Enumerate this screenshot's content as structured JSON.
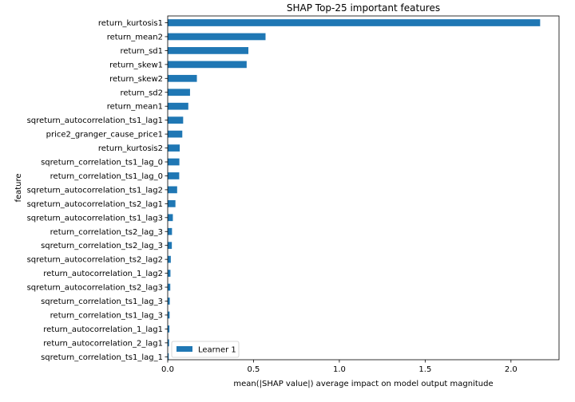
{
  "chart_data": {
    "type": "bar",
    "orientation": "horizontal",
    "title": "SHAP Top-25 important features",
    "xlabel": "mean(|SHAP value|) average impact on model output magnitude",
    "ylabel": "feature",
    "xlim": [
      0,
      2.28
    ],
    "xticks": [
      0.0,
      0.5,
      1.0,
      1.5,
      2.0
    ],
    "xtick_labels": [
      "0.0",
      "0.5",
      "1.0",
      "1.5",
      "2.0"
    ],
    "grid": false,
    "legend_position": "lower-left",
    "bar_color": "#1f77b4",
    "categories": [
      "return_kurtosis1",
      "return_mean2",
      "return_sd1",
      "return_skew1",
      "return_skew2",
      "return_sd2",
      "return_mean1",
      "sqreturn_autocorrelation_ts1_lag1",
      "price2_granger_cause_price1",
      "return_kurtosis2",
      "sqreturn_correlation_ts1_lag_0",
      "return_correlation_ts1_lag_0",
      "sqreturn_autocorrelation_ts1_lag2",
      "sqreturn_autocorrelation_ts2_lag1",
      "sqreturn_autocorrelation_ts1_lag3",
      "return_correlation_ts2_lag_3",
      "sqreturn_correlation_ts2_lag_3",
      "sqreturn_autocorrelation_ts2_lag2",
      "return_autocorrelation_1_lag2",
      "sqreturn_autocorrelation_ts2_lag3",
      "sqreturn_correlation_ts1_lag_3",
      "return_correlation_ts1_lag_3",
      "return_autocorrelation_1_lag1",
      "return_autocorrelation_2_lag1",
      "sqreturn_correlation_ts1_lag_1"
    ],
    "series": [
      {
        "name": "Learner 1",
        "values": [
          2.17,
          0.57,
          0.47,
          0.46,
          0.17,
          0.13,
          0.12,
          0.09,
          0.085,
          0.07,
          0.068,
          0.067,
          0.055,
          0.045,
          0.03,
          0.025,
          0.024,
          0.018,
          0.016,
          0.015,
          0.012,
          0.011,
          0.01,
          0.008,
          0.006
        ]
      }
    ]
  }
}
